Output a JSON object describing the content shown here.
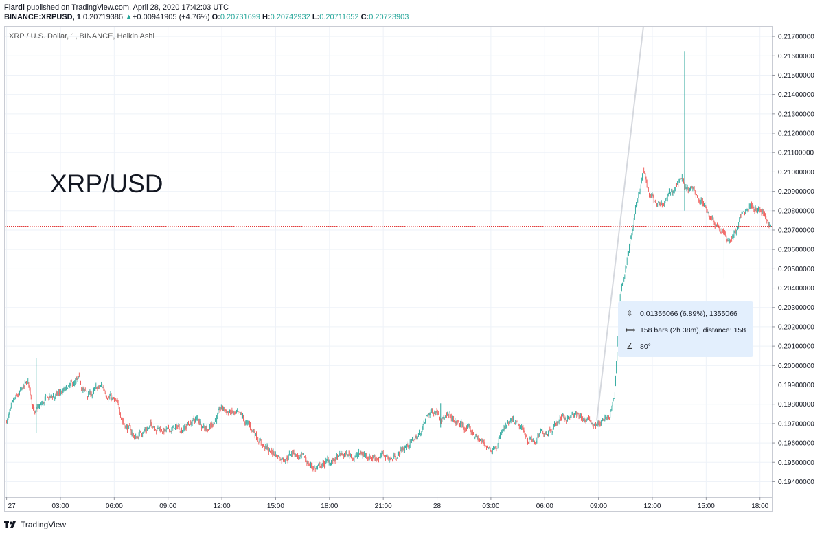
{
  "header": {
    "author": "Fiardi",
    "published_text": " published on TradingView.com, April 28, 2020 17:42:03 UTC",
    "symbol": "BINANCE:XRPUSD, 1",
    "last": "0.20719386",
    "change": "+0.00941905 (+4.76%)",
    "o_label": "O:",
    "o_value": "0.20731699",
    "h_label": "H:",
    "h_value": "0.20742932",
    "l_label": "L:",
    "l_value": "0.20711652",
    "c_label": "C:",
    "c_value": "0.20723903"
  },
  "tooltip": {
    "price_range": "0.01355066 (6.89%), 1355066",
    "bars_range": "158 bars (2h 38m), distance: 158",
    "angle": "80°"
  },
  "footer": {
    "brand": "TradingView"
  },
  "colors": {
    "up": "#26a69a",
    "down": "#ef5350",
    "grid": "#eef2f8",
    "price_line": "#e23c3c"
  },
  "chart_data": {
    "type": "candlestick",
    "title": "XRP / U.S. Dollar, 1, BINANCE, Heikin Ashi",
    "watermark": "XRP/USD",
    "y_ticks": [
      0.217,
      0.216,
      0.215,
      0.214,
      0.213,
      0.212,
      0.211,
      0.21,
      0.209,
      0.208,
      0.207,
      0.206,
      0.205,
      0.204,
      0.203,
      0.202,
      0.201,
      0.2,
      0.199,
      0.198,
      0.197,
      0.196,
      0.195,
      0.194
    ],
    "y_tick_labels": [
      "0.21700000",
      "0.21600000",
      "0.21500000",
      "0.21400000",
      "0.21300000",
      "0.21200000",
      "0.21100000",
      "0.21000000",
      "0.20900000",
      "0.20800000",
      "0.20700000",
      "0.20600000",
      "0.20500000",
      "0.20400000",
      "0.20300000",
      "0.20200000",
      "0.20100000",
      "0.20000000",
      "0.19900000",
      "0.19800000",
      "0.19700000",
      "0.19600000",
      "0.19500000",
      "0.19400000"
    ],
    "ylim": [
      0.1932,
      0.2175
    ],
    "x_ticks": [
      0,
      3,
      6,
      9,
      12,
      15,
      18,
      21,
      24,
      27,
      30,
      33,
      36,
      39,
      42
    ],
    "x_tick_labels": [
      "27",
      "03:00",
      "06:00",
      "09:00",
      "12:00",
      "15:00",
      "18:00",
      "21:00",
      "28",
      "03:00",
      "06:00",
      "09:00",
      "12:00",
      "15:00",
      "18:00"
    ],
    "xlim": [
      -0.1,
      42.7
    ],
    "x_unit": "hours since Apr 27 00:00",
    "last_price": 0.20719386,
    "trendline": [
      [
        32.9,
        0.19716
      ],
      [
        35.5,
        0.2175
      ]
    ],
    "series_keypoints": [
      [
        0.0,
        0.1972
      ],
      [
        0.5,
        0.198
      ],
      [
        1.2,
        0.199
      ],
      [
        1.6,
        0.1975
      ],
      [
        2.3,
        0.1982
      ],
      [
        3.5,
        0.1987
      ],
      [
        4.0,
        0.199
      ],
      [
        4.5,
        0.1984
      ],
      [
        5.3,
        0.1988
      ],
      [
        5.8,
        0.1985
      ],
      [
        6.5,
        0.1972
      ],
      [
        7.2,
        0.1962
      ],
      [
        7.6,
        0.1967
      ],
      [
        8.3,
        0.197
      ],
      [
        9.0,
        0.1966
      ],
      [
        9.8,
        0.1968
      ],
      [
        10.5,
        0.1972
      ],
      [
        11.3,
        0.1969
      ],
      [
        12.0,
        0.1977
      ],
      [
        12.6,
        0.1975
      ],
      [
        13.3,
        0.1969
      ],
      [
        14.0,
        0.1964
      ],
      [
        14.6,
        0.1956
      ],
      [
        15.3,
        0.1953
      ],
      [
        16.0,
        0.1956
      ],
      [
        16.6,
        0.195
      ],
      [
        17.3,
        0.1947
      ],
      [
        18.0,
        0.195
      ],
      [
        18.8,
        0.1953
      ],
      [
        19.8,
        0.1954
      ],
      [
        20.5,
        0.1954
      ],
      [
        21.5,
        0.1952
      ],
      [
        22.2,
        0.1958
      ],
      [
        23.0,
        0.1964
      ],
      [
        23.5,
        0.1974
      ],
      [
        24.0,
        0.1978
      ],
      [
        25.0,
        0.197
      ],
      [
        25.7,
        0.1967
      ],
      [
        26.5,
        0.196
      ],
      [
        27.0,
        0.1957
      ],
      [
        27.6,
        0.1966
      ],
      [
        28.2,
        0.1969
      ],
      [
        28.8,
        0.1964
      ],
      [
        29.5,
        0.196
      ],
      [
        30.2,
        0.1968
      ],
      [
        31.0,
        0.1974
      ],
      [
        32.0,
        0.1973
      ],
      [
        32.9,
        0.197
      ],
      [
        33.6,
        0.1972
      ],
      [
        33.9,
        0.1983
      ],
      [
        34.2,
        0.2036
      ],
      [
        34.6,
        0.2055
      ],
      [
        35.0,
        0.2075
      ],
      [
        35.5,
        0.2102
      ],
      [
        35.8,
        0.2088
      ],
      [
        36.5,
        0.208
      ],
      [
        37.2,
        0.209
      ],
      [
        37.6,
        0.2098
      ],
      [
        38.0,
        0.209
      ],
      [
        38.5,
        0.2088
      ],
      [
        39.3,
        0.2078
      ],
      [
        39.9,
        0.207
      ],
      [
        40.2,
        0.2064
      ],
      [
        40.7,
        0.207
      ],
      [
        41.0,
        0.2078
      ],
      [
        41.6,
        0.2084
      ],
      [
        42.0,
        0.208
      ],
      [
        42.6,
        0.2072
      ]
    ],
    "spikes": [
      {
        "x": 1.65,
        "high": 0.2004,
        "low": 0.1965
      },
      {
        "x": 37.8,
        "high": 0.21625,
        "low": 0.208
      },
      {
        "x": 40.0,
        "high": 0.2068,
        "low": 0.2045
      },
      {
        "x": 24.2,
        "high": 0.19805,
        "low": 0.1968
      }
    ]
  }
}
